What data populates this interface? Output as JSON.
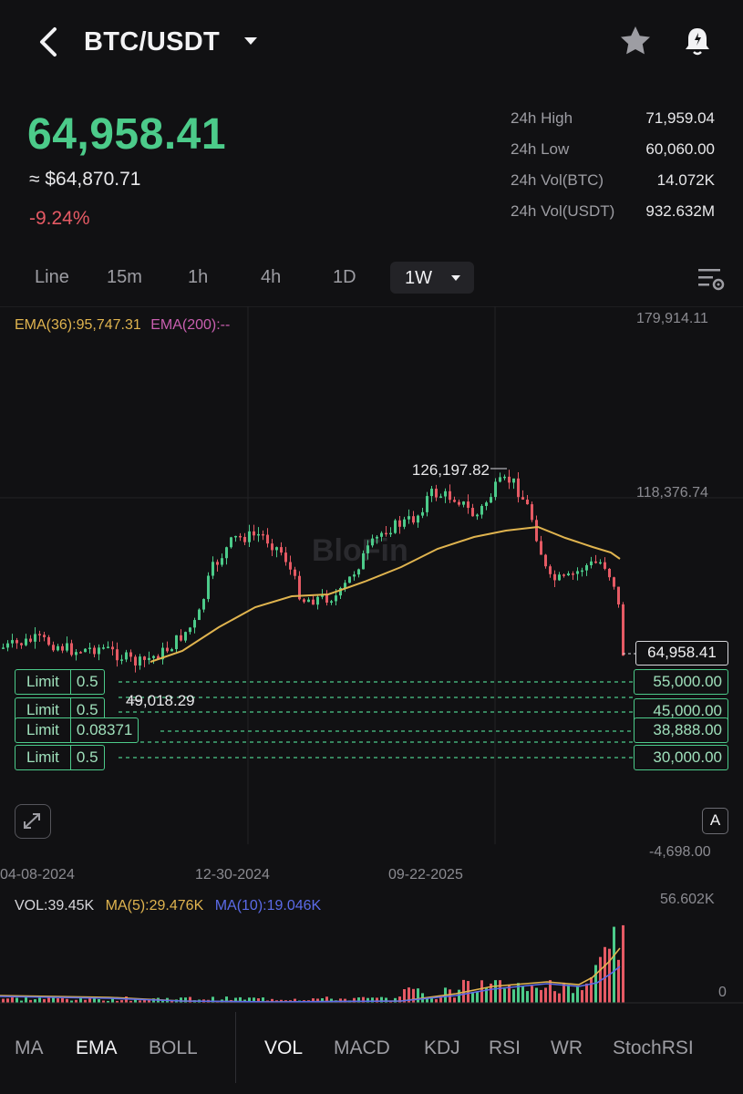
{
  "header": {
    "pair": "BTC/USDT",
    "icons": {
      "back": "back-chevron-icon",
      "favorite": "star-icon",
      "alert": "bell-alert-icon"
    }
  },
  "price": {
    "last": "64,958.41",
    "fiat": "≈ $64,870.71",
    "change": "-9.24%"
  },
  "stats": [
    {
      "label": "24h High",
      "value": "71,959.04"
    },
    {
      "label": "24h Low",
      "value": "60,060.00"
    },
    {
      "label": "24h Vol(BTC)",
      "value": "14.072K"
    },
    {
      "label": "24h Vol(USDT)",
      "value": "932.632M"
    }
  ],
  "timeframes": {
    "items": [
      "Line",
      "15m",
      "1h",
      "4h",
      "1D"
    ],
    "selected": "1W"
  },
  "chart": {
    "ema_legend": {
      "ema36": "EMA(36):95,747.31",
      "ema200": "EMA(200):--"
    },
    "y_axis": {
      "top": "179,914.11",
      "mid": "118,376.74",
      "bottom": "-4,698.00"
    },
    "x_axis": [
      "04-08-2024",
      "12-30-2024",
      "09-22-2025"
    ],
    "high_marker": "126,197.82",
    "low_marker": "49,018.29",
    "current_price": "64,958.41",
    "orders": [
      {
        "type": "Limit",
        "qty": "0.5",
        "price": "55,000.00"
      },
      {
        "type": "Limit",
        "qty": "0.5",
        "price": "45,000.00"
      },
      {
        "type": "Limit",
        "qty": "0.08371",
        "price": "38,888.00"
      },
      {
        "type": "Limit",
        "qty": "0.5",
        "price": "30,000.00"
      }
    ],
    "auto_label": "A",
    "watermark": "BloFin",
    "colors": {
      "up": "#4ccb8a",
      "down": "#e55a64",
      "ema36": "#e0b44f",
      "ema200": "#c95fb0",
      "ma10": "#5b6be8"
    }
  },
  "volume": {
    "legend": {
      "vol": "VOL:39.45K",
      "ma5": "MA(5):29.476K",
      "ma10": "MA(10):19.046K"
    },
    "y_axis": {
      "top": "56.602K",
      "bottom": "0"
    }
  },
  "indicators": {
    "main": [
      "MA",
      "EMA",
      "BOLL"
    ],
    "main_selected": "EMA",
    "sub": [
      "VOL",
      "MACD",
      "KDJ",
      "RSI",
      "WR",
      "StochRSI"
    ],
    "sub_selected": "VOL"
  }
}
